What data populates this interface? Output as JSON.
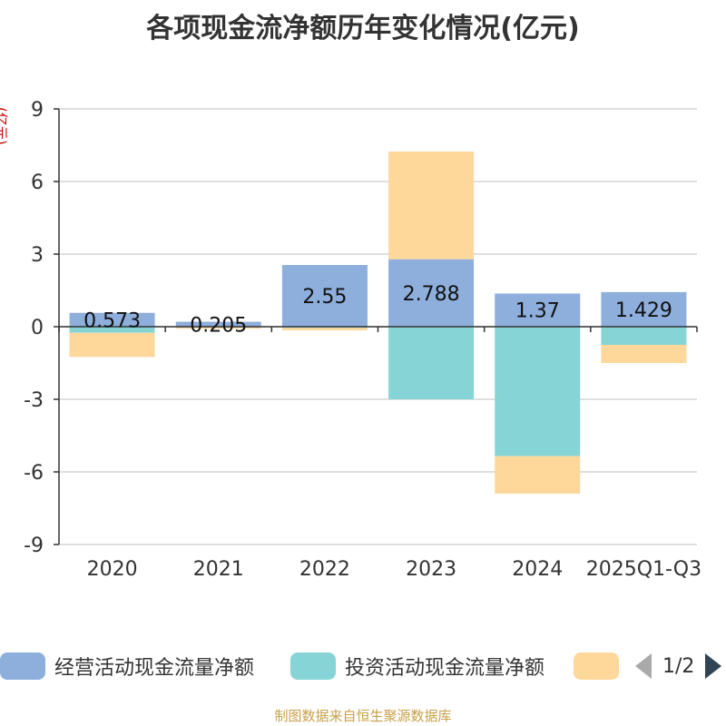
{
  "chart_data": {
    "type": "bar",
    "stacked": true,
    "title": "各项现金流净额历年变化情况(亿元)",
    "ylabel": "(亿元)",
    "xlabel": "",
    "ylim": [
      -9,
      9
    ],
    "yticks": [
      9,
      6,
      3,
      0,
      -3,
      -6,
      -9
    ],
    "categories": [
      "2020",
      "2021",
      "2022",
      "2023",
      "2024",
      "2025Q1-Q3"
    ],
    "series": [
      {
        "name": "经营活动现金流量净额",
        "color": "#8eaedc",
        "values": [
          0.573,
          0.205,
          2.55,
          2.788,
          1.37,
          1.429
        ],
        "labels": [
          "0.573",
          "0.205",
          "2.55",
          "2.788",
          "1.37",
          "1.429"
        ]
      },
      {
        "name": "投资活动现金流量净额",
        "color": "#86d4d6",
        "values": [
          -0.25,
          -0.03,
          -0.05,
          -3.0,
          -5.35,
          -0.75
        ]
      },
      {
        "name": "",
        "color": "#fdd89a",
        "values": [
          -1.0,
          -0.05,
          -0.1,
          4.45,
          -1.55,
          -0.75
        ]
      }
    ]
  },
  "legend": {
    "items": [
      "经营活动现金流量净额",
      "投资活动现金流量净额",
      ""
    ],
    "page": "1/2"
  },
  "footer": "制图数据来自恒生聚源数据库"
}
